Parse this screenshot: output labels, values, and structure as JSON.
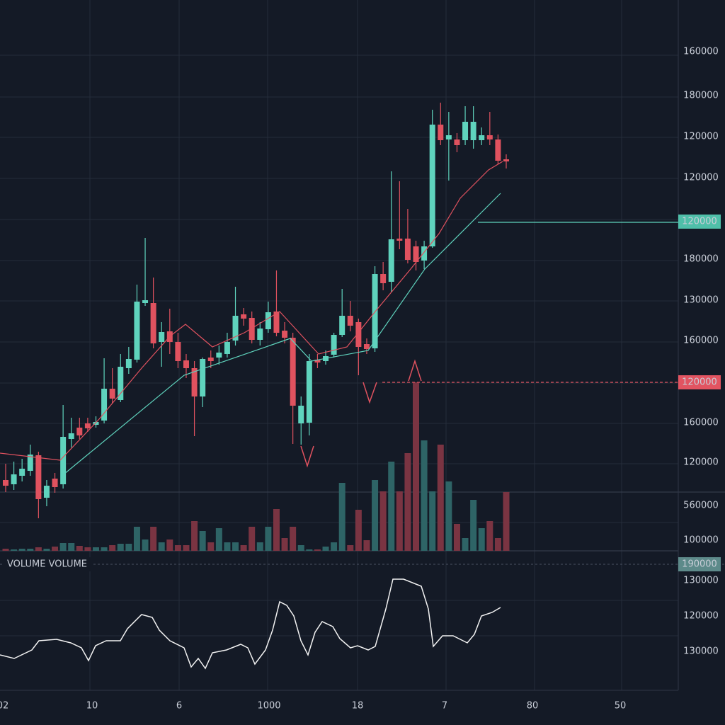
{
  "price_labels": [
    160000,
    180000,
    120000,
    120000,
    180000,
    130000,
    160000,
    160000,
    120000
  ],
  "price_tags": [
    120000,
    120000
  ],
  "volume_labels": [
    560000,
    100000
  ],
  "indicator_label": "VOLUME VOLUME",
  "indicator_tag": 190000,
  "oscillator_labels": [
    130000,
    120000,
    130000
  ],
  "time_labels": [
    "02",
    "10",
    "6",
    "1000",
    "18",
    "7",
    "80",
    "50"
  ]
}
